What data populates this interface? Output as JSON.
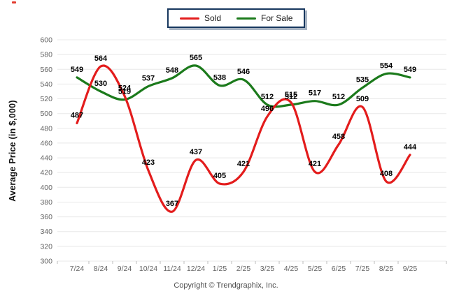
{
  "chart_data": {
    "type": "line",
    "title": "",
    "xlabel": "",
    "ylabel": "Average Price (in $,000)",
    "ylim": [
      300,
      600
    ],
    "ytick_step": 20,
    "grid": true,
    "legend_position": "top-center",
    "categories": [
      "7/24",
      "8/24",
      "9/24",
      "10/24",
      "11/24",
      "12/24",
      "1/25",
      "2/25",
      "3/25",
      "4/25",
      "5/25",
      "6/25",
      "7/25",
      "8/25",
      "9/25"
    ],
    "series": [
      {
        "name": "Sold",
        "color": "#e31c1c",
        "values": [
          487,
          564,
          524,
          423,
          367,
          437,
          405,
          421,
          496,
          515,
          421,
          458,
          509,
          408,
          444
        ]
      },
      {
        "name": "For Sale",
        "color": "#1b7a1b",
        "values": [
          549,
          530,
          519,
          537,
          548,
          565,
          538,
          546,
          512,
          512,
          517,
          512,
          535,
          554,
          549
        ]
      }
    ]
  },
  "colors": {
    "sold": "#e31c1c",
    "for_sale": "#1b7a1b",
    "grid": "#e8e8e8",
    "tick_text": "#636363",
    "legend_border": "#17375e",
    "value_label": "#000000"
  },
  "footer": {
    "copyright": "Copyright © Trendgraphix, Inc."
  }
}
